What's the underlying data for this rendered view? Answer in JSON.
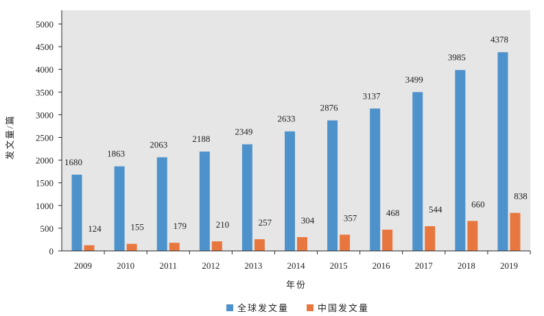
{
  "chart_data": {
    "type": "bar",
    "title": "",
    "xlabel": "年份",
    "ylabel": "发文量/篇",
    "categories": [
      "2009",
      "2010",
      "2011",
      "2012",
      "2013",
      "2014",
      "2015",
      "2016",
      "2017",
      "2018",
      "2019"
    ],
    "series": [
      {
        "name": "全球发文量",
        "color": "#4e92cb",
        "values": [
          1680,
          1863,
          2063,
          2188,
          2349,
          2633,
          2876,
          3137,
          3499,
          3985,
          4378
        ]
      },
      {
        "name": "中国发文量",
        "color": "#e8773f",
        "values": [
          124,
          155,
          179,
          210,
          257,
          304,
          357,
          468,
          544,
          660,
          838
        ]
      }
    ],
    "ylim": [
      0,
      5000
    ],
    "yticks": [
      0,
      500,
      1000,
      1500,
      2000,
      2500,
      3000,
      3500,
      4000,
      4500,
      5000
    ],
    "grid": false,
    "legend": "bottom-center",
    "plot_background": "#e6e6e6"
  }
}
